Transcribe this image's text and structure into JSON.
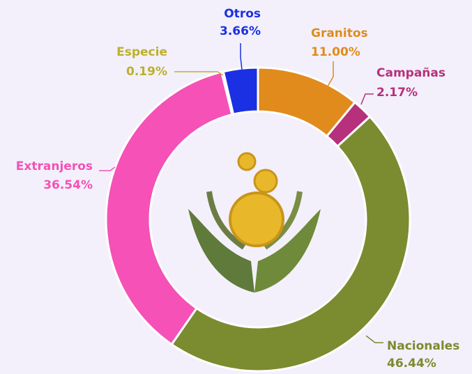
{
  "chart_data": {
    "type": "pie",
    "categories": [
      "Granitos",
      "Campañas",
      "Nacionales",
      "Extranjeros",
      "Especie",
      "Otros"
    ],
    "values": [
      11.0,
      2.17,
      46.44,
      36.54,
      0.19,
      3.66
    ],
    "value_labels": [
      "11.00%",
      "2.17%",
      "46.44%",
      "36.54%",
      "0.19%",
      "3.66%"
    ],
    "colors": [
      "#e08b1c",
      "#b7307c",
      "#7b8b2f",
      "#f551b6",
      "#bdb02c",
      "#1b30e2"
    ]
  }
}
